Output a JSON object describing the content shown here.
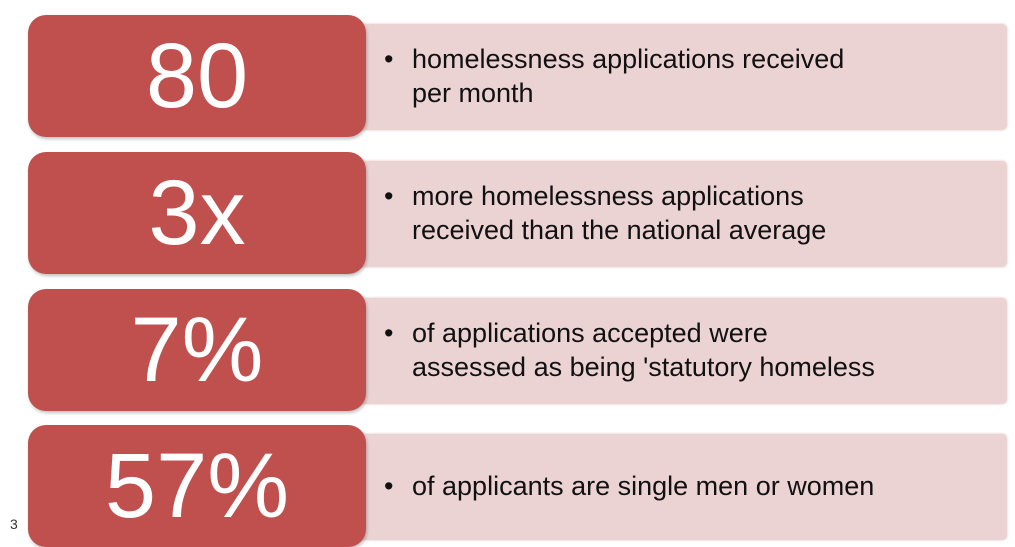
{
  "items": [
    {
      "figure": "80",
      "lines": [
        "homelessness applications received",
        "per month"
      ]
    },
    {
      "figure": "3x",
      "lines": [
        "more homelessness applications",
        "received than the national average"
      ]
    },
    {
      "figure": "7%",
      "lines": [
        "of applications accepted were",
        "assessed as being 'statutory homeless"
      ]
    },
    {
      "figure": "57%",
      "lines": [
        "of applicants are single men or women"
      ]
    }
  ],
  "page_number": "3"
}
